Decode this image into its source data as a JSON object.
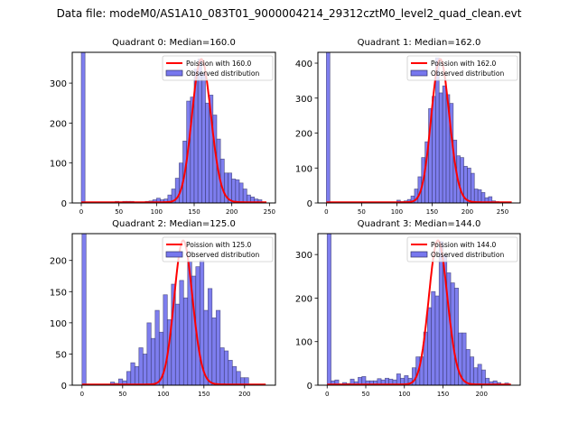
{
  "suptitle": "Data file: modeM0/AS1A10_083T01_9000004214_29312cztM0_level2_quad_clean.evt",
  "chart_data": [
    {
      "type": "bar",
      "title": "Quadrant 0: Median=160.0",
      "xlabel": "",
      "ylabel": "",
      "xlim": [
        -12,
        258
      ],
      "ylim": [
        0,
        377
      ],
      "xticks": [
        0,
        50,
        100,
        150,
        200,
        250
      ],
      "yticks": [
        0,
        100,
        200,
        300
      ],
      "bin_width": 5,
      "bins_start": [
        0,
        45,
        55,
        60,
        65,
        85,
        90,
        95,
        100,
        105,
        110,
        115,
        120,
        125,
        130,
        135,
        140,
        145,
        150,
        155,
        160,
        165,
        170,
        175,
        180,
        185,
        190,
        195,
        200,
        205,
        210,
        215,
        220,
        225,
        230,
        235
      ],
      "counts": [
        377,
        4,
        4,
        4,
        4,
        4,
        5,
        8,
        12,
        8,
        10,
        20,
        35,
        62,
        100,
        155,
        255,
        265,
        335,
        360,
        325,
        250,
        270,
        220,
        160,
        110,
        75,
        75,
        60,
        58,
        50,
        35,
        20,
        15,
        10,
        8
      ],
      "poisson_mean": 160.0,
      "legend": [
        "Poission with 160.0",
        "Observed distribution"
      ],
      "legend_position": "upper right"
    },
    {
      "type": "bar",
      "title": "Quadrant 1: Median=162.0",
      "xlabel": "",
      "ylabel": "",
      "xlim": [
        -12,
        275
      ],
      "ylim": [
        0,
        431
      ],
      "xticks": [
        0,
        50,
        100,
        150,
        200,
        250
      ],
      "yticks": [
        0,
        100,
        200,
        300,
        400
      ],
      "bin_width": 5,
      "bins_start": [
        0,
        80,
        85,
        90,
        95,
        100,
        105,
        110,
        115,
        120,
        125,
        130,
        135,
        140,
        145,
        150,
        155,
        160,
        165,
        170,
        175,
        180,
        185,
        190,
        195,
        200,
        205,
        210,
        215,
        220,
        225,
        230,
        235,
        240,
        245,
        250,
        255
      ],
      "counts": [
        431,
        2,
        2,
        2,
        2,
        8,
        4,
        6,
        10,
        20,
        40,
        75,
        130,
        175,
        270,
        305,
        415,
        315,
        335,
        310,
        285,
        180,
        135,
        130,
        105,
        100,
        85,
        40,
        38,
        30,
        15,
        18,
        6,
        4,
        3,
        2,
        2
      ],
      "poisson_mean": 162.0,
      "legend": [
        "Poission with 162.0",
        "Observed distribution"
      ],
      "legend_position": "upper right"
    },
    {
      "type": "bar",
      "title": "Quadrant 2: Median=125.0",
      "xlabel": "",
      "ylabel": "",
      "xlim": [
        -12,
        238
      ],
      "ylim": [
        0,
        243
      ],
      "xticks": [
        0,
        50,
        100,
        150,
        200
      ],
      "yticks": [
        0,
        50,
        100,
        150,
        200
      ],
      "bin_width": 5,
      "bins_start": [
        0,
        35,
        40,
        45,
        50,
        55,
        60,
        65,
        70,
        75,
        80,
        85,
        90,
        95,
        100,
        105,
        110,
        115,
        120,
        125,
        130,
        135,
        140,
        145,
        150,
        155,
        160,
        165,
        170,
        175,
        180,
        185,
        190,
        195,
        200
      ],
      "counts": [
        243,
        5,
        3,
        10,
        7,
        22,
        36,
        30,
        60,
        50,
        100,
        75,
        120,
        85,
        145,
        105,
        162,
        130,
        168,
        140,
        198,
        175,
        190,
        200,
        120,
        155,
        108,
        120,
        60,
        55,
        40,
        30,
        22,
        12,
        12
      ],
      "poisson_mean": 125.0,
      "legend": [
        "Poission with 125.0",
        "Observed distribution"
      ],
      "legend_position": "upper right"
    },
    {
      "type": "bar",
      "title": "Quadrant 3: Median=144.0",
      "xlabel": "",
      "ylabel": "",
      "xlim": [
        -12,
        250
      ],
      "ylim": [
        0,
        348
      ],
      "xticks": [
        0,
        50,
        100,
        150,
        200
      ],
      "yticks": [
        0,
        100,
        200,
        300
      ],
      "bin_width": 5,
      "bins_start": [
        0,
        5,
        10,
        15,
        20,
        25,
        30,
        35,
        40,
        45,
        50,
        55,
        60,
        65,
        70,
        75,
        80,
        85,
        90,
        95,
        100,
        105,
        110,
        115,
        120,
        125,
        130,
        135,
        140,
        145,
        150,
        155,
        160,
        165,
        170,
        175,
        180,
        185,
        190,
        195,
        200,
        205,
        210,
        215,
        220,
        225,
        230
      ],
      "counts": [
        348,
        10,
        12,
        3,
        6,
        4,
        14,
        8,
        18,
        20,
        10,
        10,
        10,
        15,
        12,
        16,
        14,
        12,
        26,
        16,
        22,
        16,
        40,
        65,
        65,
        122,
        178,
        215,
        205,
        330,
        300,
        258,
        235,
        223,
        120,
        120,
        82,
        65,
        40,
        48,
        35,
        16,
        8,
        10,
        6,
        2,
        5
      ],
      "poisson_mean": 144.0,
      "legend": [
        "Poission with 144.0",
        "Observed distribution"
      ],
      "legend_position": "upper right"
    }
  ],
  "colors": {
    "bar_fill": "#7777ee",
    "bar_edge": "#333366",
    "poisson_line": "#ff0000"
  }
}
